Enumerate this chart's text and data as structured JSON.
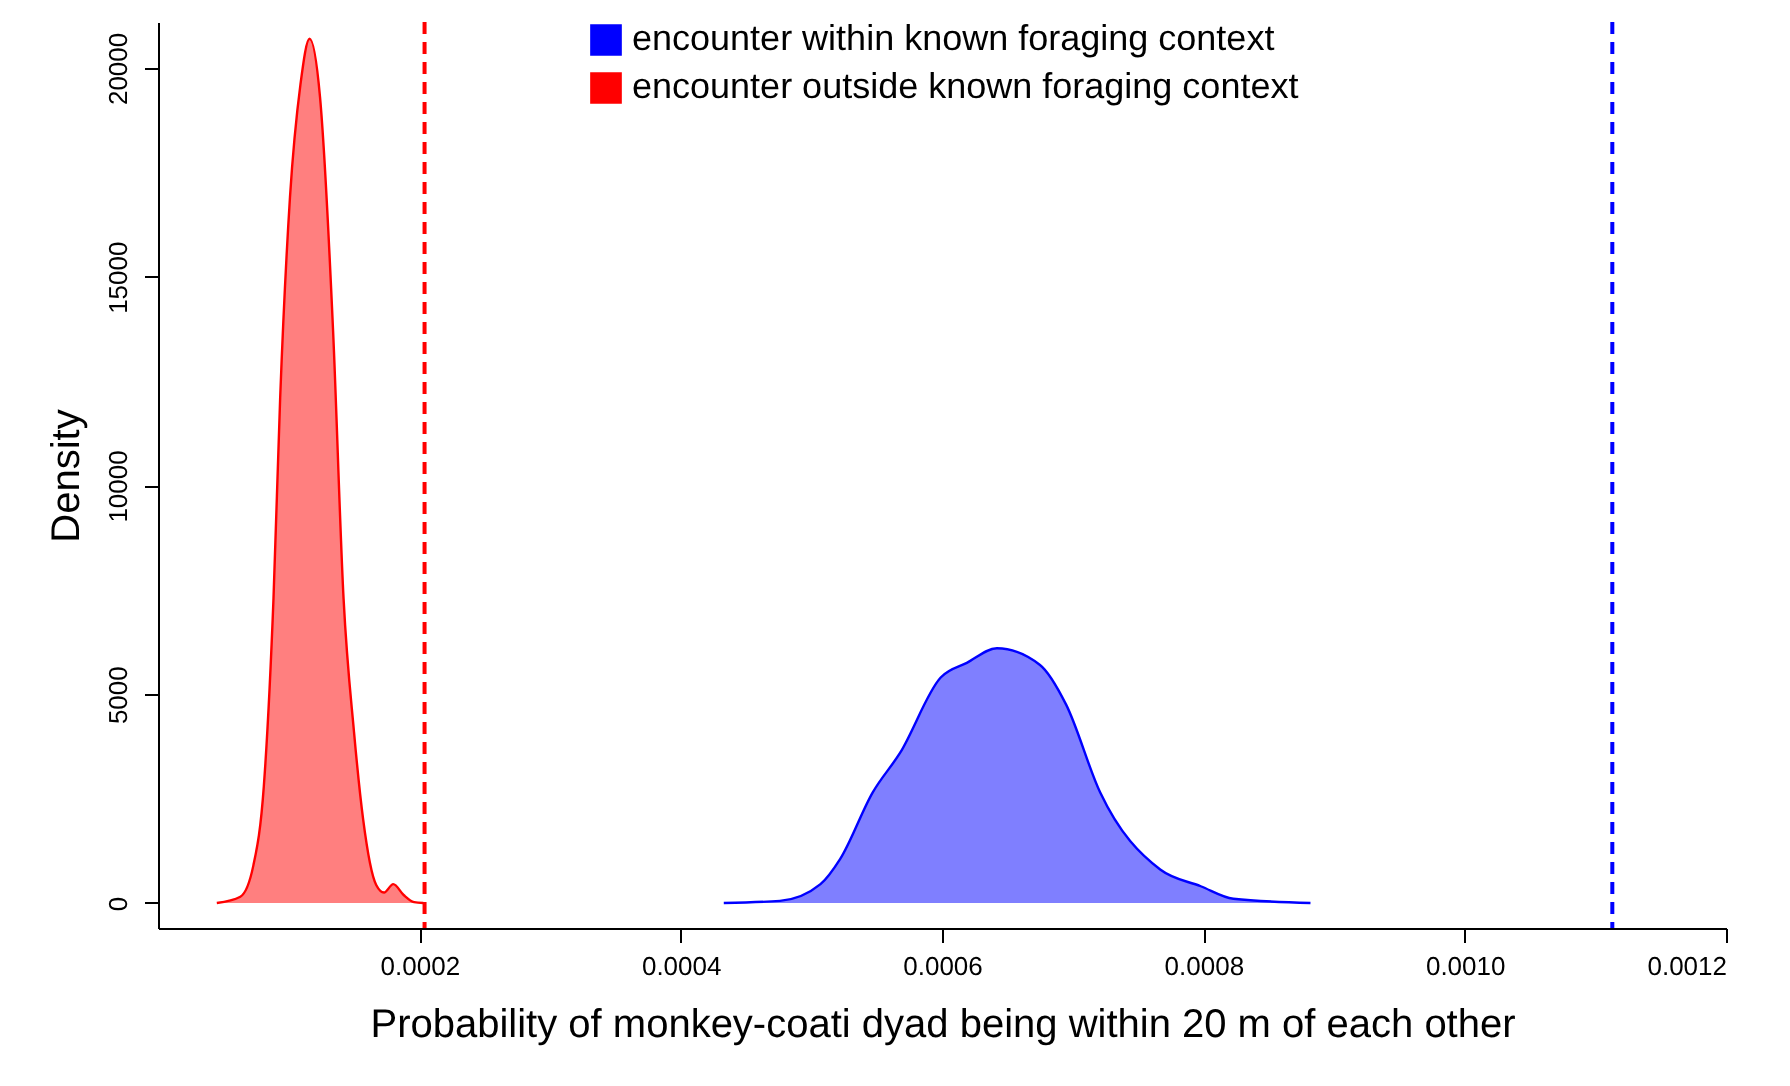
{
  "chart_data": {
    "type": "area",
    "xlabel": "Probability of monkey-coati dyad being within 20 m of each other",
    "ylabel": "Density",
    "xlim": [
      0,
      0.0012
    ],
    "xticks": [
      0.0002,
      0.0004,
      0.0006,
      0.0008,
      {
        "value": 0.001,
        "label": "0.0010"
      },
      0.0012
    ],
    "ylim": [
      -600,
      21100
    ],
    "yticks": [
      0,
      5000,
      10000,
      15000,
      20000
    ],
    "grid": false,
    "legend": "top right",
    "series": [
      {
        "name": "encounter within known foraging context",
        "color": "#0000ff",
        "x": [
          0.000433,
          0.000476,
          0.000507,
          0.000522,
          0.000547,
          0.000568,
          0.000599,
          0.000619,
          0.000642,
          0.000675,
          0.000695,
          0.000721,
          0.000767,
          0.000798,
          0.000823,
          0.000882
        ],
        "values": [
          0,
          50,
          450,
          1050,
          2650,
          3600,
          5400,
          5750,
          6100,
          5700,
          4750,
          2650,
          800,
          400,
          100,
          0
        ]
      },
      {
        "name": "encounter outside known foraging context",
        "color": "#ff0000",
        "x": [
          4.5e-05,
          6.3e-05,
          7.3e-05,
          8.1e-05,
          8.84e-05,
          9.35e-05,
          0.000101,
          0.000109,
          0.000116,
          0.000124,
          0.000134,
          0.000142,
          0.00015,
          0.000157,
          0.000167,
          0.000173,
          0.00018,
          0.000188,
          0.000196,
          0.000203
        ],
        "values": [
          0,
          150,
          900,
          2800,
          7300,
          12100,
          16900,
          19600,
          20700,
          19300,
          13700,
          7300,
          4100,
          2000,
          430,
          250,
          450,
          190,
          20,
          0
        ]
      }
    ],
    "ref_lines": [
      {
        "axis": "x",
        "value": 0.000204,
        "color": "#ff0000",
        "line_style": "dashed"
      },
      {
        "axis": "x",
        "value": 0.001113,
        "color": "#0000ff",
        "line_style": "dashed"
      }
    ]
  }
}
